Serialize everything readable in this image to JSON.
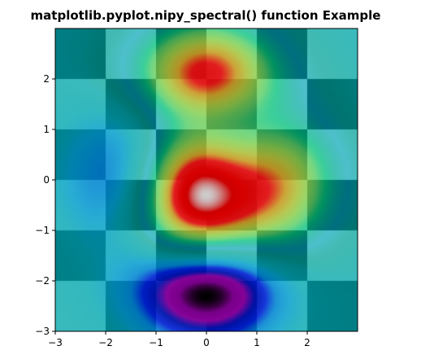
{
  "chart_data": {
    "type": "heatmap",
    "title": "matplotlib.pyplot.nipy_spectral() function Example",
    "xlabel": "",
    "ylabel": "",
    "xlim": [
      -3,
      3
    ],
    "ylim": [
      -3,
      3
    ],
    "xticks": [
      -3,
      -2,
      -1,
      0,
      1,
      2
    ],
    "yticks": [
      -3,
      -2,
      -1,
      0,
      1,
      2
    ],
    "xtick_labels": [
      "−3",
      "−2",
      "−1",
      "0",
      "1",
      "2"
    ],
    "ytick_labels": [
      "−3",
      "−2",
      "−1",
      "0",
      "1",
      "2"
    ],
    "colormap_background": "checkerboard",
    "colormap_overlay": "nipy_spectral",
    "checker_grid": 6,
    "checker_colors": [
      "#006e80",
      "#4dbfcc"
    ],
    "grid": false,
    "legend": "none"
  }
}
